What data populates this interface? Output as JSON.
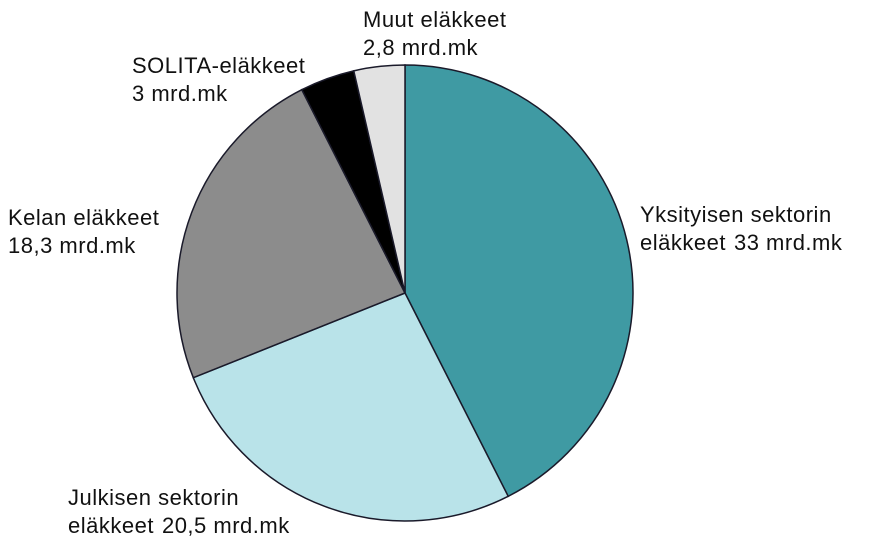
{
  "chart_data": {
    "type": "pie",
    "categories": [
      "Yksityisen sektorin eläkkeet",
      "Julkisen sektorin eläkkeet",
      "Kelan eläkkeet",
      "SOLITA-eläkkeet",
      "Muut eläkkeet"
    ],
    "values": [
      33,
      20.5,
      18.3,
      3,
      2.8
    ],
    "value_labels": [
      "33 mrd.mk",
      "20,5 mrd.mk",
      "18,3 mrd.mk",
      "3 mrd.mk",
      "2,8 mrd.mk"
    ],
    "colors": [
      "#3f9aa3",
      "#b9e3e9",
      "#8c8c8c",
      "#000000",
      "#e2e2e2"
    ]
  }
}
